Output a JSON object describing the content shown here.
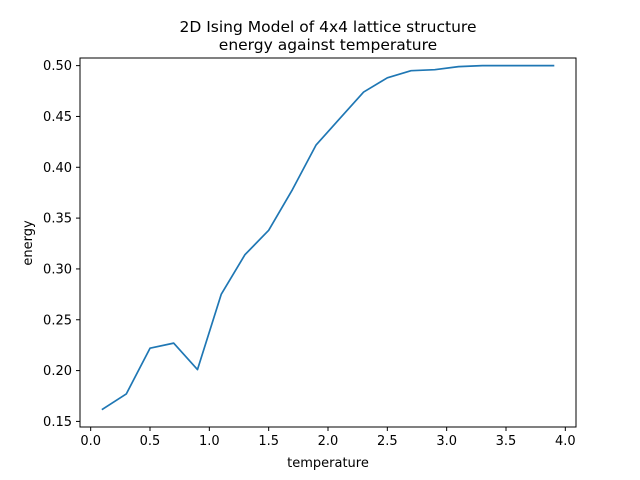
{
  "chart_data": {
    "type": "line",
    "title_line1": "2D Ising Model of 4x4 lattice structure",
    "title_line2": "energy against temperature",
    "xlabel": "temperature",
    "ylabel": "energy",
    "xlim": [
      -0.09,
      4.09
    ],
    "ylim": [
      0.1445,
      0.5075
    ],
    "xticks": [
      0.0,
      0.5,
      1.0,
      1.5,
      2.0,
      2.5,
      3.0,
      3.5,
      4.0
    ],
    "xtick_labels": [
      "0.0",
      "0.5",
      "1.0",
      "1.5",
      "2.0",
      "2.5",
      "3.0",
      "3.5",
      "4.0"
    ],
    "yticks": [
      0.15,
      0.2,
      0.25,
      0.3,
      0.35,
      0.4,
      0.45,
      0.5
    ],
    "ytick_labels": [
      "0.15",
      "0.20",
      "0.25",
      "0.30",
      "0.35",
      "0.40",
      "0.45",
      "0.50"
    ],
    "grid": false,
    "series": [
      {
        "color": "#1f77b4",
        "x": [
          0.1,
          0.3,
          0.5,
          0.7,
          0.9,
          1.1,
          1.3,
          1.5,
          1.7,
          1.9,
          2.1,
          2.3,
          2.5,
          2.7,
          2.9,
          3.1,
          3.3,
          3.5,
          3.7,
          3.9
        ],
        "y": [
          0.162,
          0.177,
          0.222,
          0.227,
          0.201,
          0.275,
          0.314,
          0.338,
          0.378,
          0.422,
          0.448,
          0.474,
          0.488,
          0.495,
          0.496,
          0.499,
          0.5,
          0.5,
          0.5,
          0.5
        ]
      }
    ]
  }
}
